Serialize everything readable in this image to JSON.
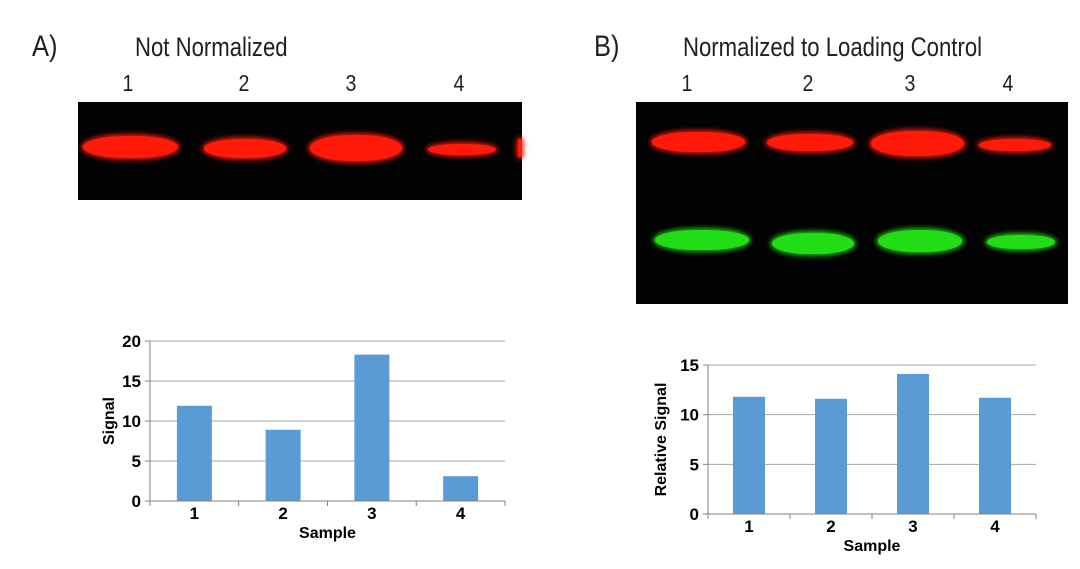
{
  "panel_a": {
    "letter": "A)",
    "title": "Not Normalized",
    "lanes": [
      "1",
      "2",
      "3",
      "4"
    ]
  },
  "panel_b": {
    "letter": "B)",
    "title": "Normalized to Loading Control",
    "lanes": [
      "1",
      "2",
      "3",
      "4"
    ]
  },
  "colors": {
    "target_band": "#ff1a0a",
    "loading_control_band": "#22dd16",
    "bar": "#5b9bd5",
    "blot_bg": "#030303"
  },
  "chart_data": [
    {
      "type": "bar",
      "categories": [
        "1",
        "2",
        "3",
        "4"
      ],
      "values": [
        11.9,
        8.9,
        18.3,
        3.1
      ],
      "ylim": [
        0,
        20
      ],
      "yticks": [
        0,
        5,
        10,
        15,
        20
      ],
      "xlabel": "Sample",
      "ylabel": "Signal",
      "grid": true
    },
    {
      "type": "bar",
      "categories": [
        "1",
        "2",
        "3",
        "4"
      ],
      "values": [
        11.8,
        11.6,
        14.1,
        11.7
      ],
      "ylim": [
        0,
        15
      ],
      "yticks": [
        0,
        5,
        10,
        15
      ],
      "xlabel": "Sample",
      "ylabel": "Relative Signal",
      "grid": true
    }
  ]
}
